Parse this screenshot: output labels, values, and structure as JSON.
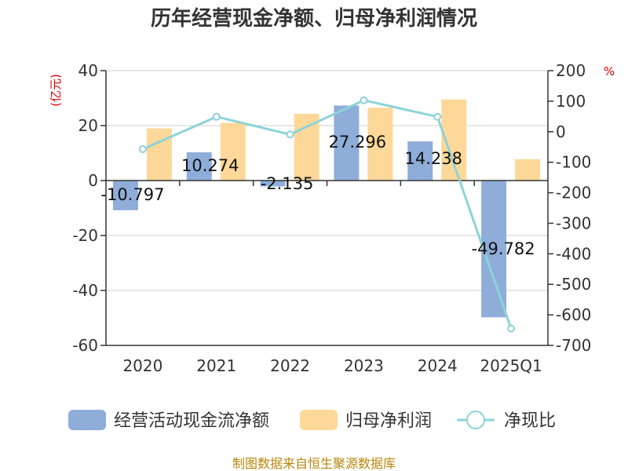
{
  "title": "历年经营现金净额、归母净利润情况",
  "source": "制图数据来自恒生聚源数据库",
  "chart_data": {
    "type": "bar",
    "title": "历年经营现金净额、归母净利润情况",
    "categories": [
      "2020",
      "2021",
      "2022",
      "2023",
      "2024",
      "2025Q1"
    ],
    "y_left": {
      "unit": "(亿元)",
      "ticks": [
        "40",
        "20",
        "0",
        "-20",
        "-40",
        "-60"
      ],
      "range": [
        -60,
        40
      ]
    },
    "y_right": {
      "unit": "%",
      "ticks": [
        "200",
        "100",
        "0",
        "-100",
        "-200",
        "-300",
        "-400",
        "-500",
        "-600",
        "-700"
      ],
      "range": [
        -700,
        200
      ]
    },
    "grid": true,
    "legend_position": "bottom",
    "series": [
      {
        "name": "经营活动现金流净额",
        "kind": "bar",
        "axis": "left",
        "color": "#8eadd9",
        "values": [
          -10.797,
          10.274,
          -2.135,
          27.296,
          14.238,
          -49.782
        ],
        "labels": [
          "-10.797",
          "10.274",
          "-2.135",
          "27.296",
          "14.238",
          "-49.782"
        ]
      },
      {
        "name": "归母净利润",
        "kind": "bar",
        "axis": "left",
        "color": "#fdd898",
        "values": [
          19.0,
          21.0,
          24.3,
          26.5,
          29.5,
          7.8
        ]
      },
      {
        "name": "净现比",
        "kind": "line",
        "axis": "right",
        "color": "#8dd3d8",
        "values": [
          -57,
          49,
          -9,
          103,
          49,
          -645
        ]
      }
    ]
  }
}
